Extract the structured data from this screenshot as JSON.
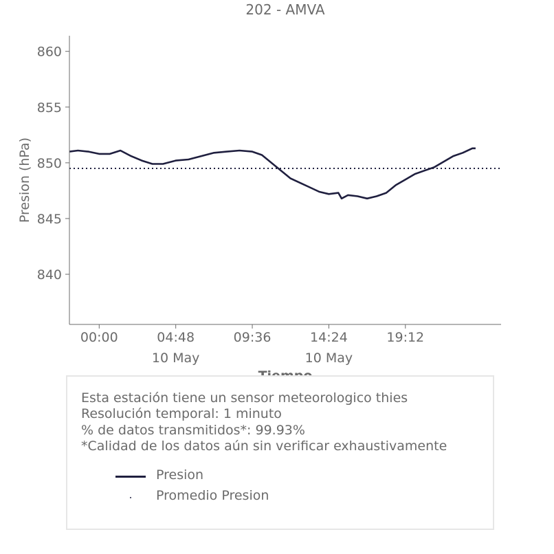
{
  "chart_data": {
    "type": "line",
    "title": "202 - AMVA",
    "xlabel": "Tiempo",
    "ylabel": "Presion (hPa)",
    "ylim": [
      835.5,
      861.4
    ],
    "xlim": [
      "2024-05-09T22:08",
      "2024-05-11T01:12"
    ],
    "x_ticks": [
      {
        "x": "2024-05-10T00:00",
        "label": "00:00",
        "sublabel": ""
      },
      {
        "x": "2024-05-10T04:48",
        "label": "04:48",
        "sublabel": "10 May"
      },
      {
        "x": "2024-05-10T09:36",
        "label": "09:36",
        "sublabel": ""
      },
      {
        "x": "2024-05-10T14:24",
        "label": "14:24",
        "sublabel": "10 May"
      },
      {
        "x": "2024-05-10T19:12",
        "label": "19:12",
        "sublabel": ""
      }
    ],
    "y_ticks": [
      840,
      845,
      850,
      855,
      860
    ],
    "series": [
      {
        "name": "Presion",
        "color": "#1f1f3f",
        "style": "solid",
        "points": [
          [
            "2024-05-09T22:08",
            851.0
          ],
          [
            "2024-05-09T22:40",
            851.1
          ],
          [
            "2024-05-09T23:20",
            851.0
          ],
          [
            "2024-05-10T00:00",
            850.8
          ],
          [
            "2024-05-10T00:40",
            850.8
          ],
          [
            "2024-05-10T01:20",
            851.1
          ],
          [
            "2024-05-10T02:00",
            850.6
          ],
          [
            "2024-05-10T02:40",
            850.2
          ],
          [
            "2024-05-10T03:20",
            849.9
          ],
          [
            "2024-05-10T04:00",
            849.9
          ],
          [
            "2024-05-10T04:48",
            850.2
          ],
          [
            "2024-05-10T05:36",
            850.3
          ],
          [
            "2024-05-10T06:24",
            850.6
          ],
          [
            "2024-05-10T07:12",
            850.9
          ],
          [
            "2024-05-10T08:00",
            851.0
          ],
          [
            "2024-05-10T08:48",
            851.1
          ],
          [
            "2024-05-10T09:36",
            851.0
          ],
          [
            "2024-05-10T10:12",
            850.7
          ],
          [
            "2024-05-10T10:48",
            850.0
          ],
          [
            "2024-05-10T11:24",
            849.3
          ],
          [
            "2024-05-10T12:00",
            848.6
          ],
          [
            "2024-05-10T12:36",
            848.2
          ],
          [
            "2024-05-10T13:12",
            847.8
          ],
          [
            "2024-05-10T13:48",
            847.4
          ],
          [
            "2024-05-10T14:24",
            847.2
          ],
          [
            "2024-05-10T15:00",
            847.3
          ],
          [
            "2024-05-10T15:12",
            846.8
          ],
          [
            "2024-05-10T15:36",
            847.1
          ],
          [
            "2024-05-10T16:12",
            847.0
          ],
          [
            "2024-05-10T16:48",
            846.8
          ],
          [
            "2024-05-10T17:24",
            847.0
          ],
          [
            "2024-05-10T18:00",
            847.3
          ],
          [
            "2024-05-10T18:36",
            848.0
          ],
          [
            "2024-05-10T19:12",
            848.5
          ],
          [
            "2024-05-10T19:48",
            849.0
          ],
          [
            "2024-05-10T20:24",
            849.3
          ],
          [
            "2024-05-10T21:00",
            849.6
          ],
          [
            "2024-05-10T21:36",
            850.1
          ],
          [
            "2024-05-10T22:12",
            850.6
          ],
          [
            "2024-05-10T22:48",
            850.9
          ],
          [
            "2024-05-10T23:24",
            851.3
          ],
          [
            "2024-05-10T23:36",
            851.3
          ]
        ]
      },
      {
        "name": "Promedio Presion",
        "color": "#1f1f3f",
        "style": "dotted",
        "value": 849.5
      }
    ]
  },
  "info": {
    "lines": [
      "Esta estación tiene un sensor meteorologico thies",
      "Resolución temporal: 1 minuto",
      "% de datos transmitidos*: 99.93%",
      "*Calidad de los datos aún sin verificar exhaustivamente"
    ]
  },
  "legend": {
    "items": [
      {
        "label": "Presion",
        "marker": "line"
      },
      {
        "label": "Promedio Presion",
        "marker": "dot"
      }
    ]
  }
}
